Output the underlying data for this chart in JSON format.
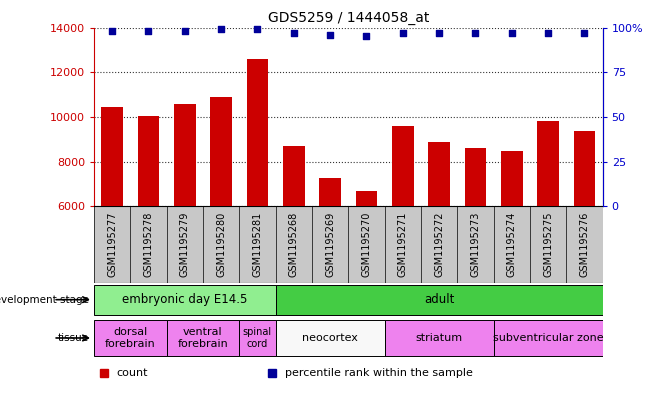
{
  "title": "GDS5259 / 1444058_at",
  "samples": [
    "GSM1195277",
    "GSM1195278",
    "GSM1195279",
    "GSM1195280",
    "GSM1195281",
    "GSM1195268",
    "GSM1195269",
    "GSM1195270",
    "GSM1195271",
    "GSM1195272",
    "GSM1195273",
    "GSM1195274",
    "GSM1195275",
    "GSM1195276"
  ],
  "counts": [
    10450,
    10020,
    10600,
    10900,
    12600,
    8700,
    7250,
    6680,
    9600,
    8900,
    8600,
    8480,
    9800,
    9380
  ],
  "percentiles": [
    98,
    98,
    98,
    99,
    99,
    97,
    96,
    95,
    97,
    97,
    97,
    97,
    97,
    97
  ],
  "ylim_left": [
    6000,
    14000
  ],
  "ylim_right": [
    0,
    100
  ],
  "yticks_left": [
    6000,
    8000,
    10000,
    12000,
    14000
  ],
  "yticks_right": [
    0,
    25,
    50,
    75,
    100
  ],
  "ytick_labels_right": [
    "0",
    "25",
    "50",
    "75",
    "100%"
  ],
  "bar_color": "#cc0000",
  "dot_color": "#000099",
  "background_color": "#ffffff",
  "tick_bg_color": "#c8c8c8",
  "dev_stage_row": {
    "label": "development stage",
    "groups": [
      {
        "name": "embryonic day E14.5",
        "start": 0,
        "end": 5,
        "color": "#90ee90"
      },
      {
        "name": "adult",
        "start": 5,
        "end": 14,
        "color": "#44cc44"
      }
    ]
  },
  "tissue_row": {
    "label": "tissue",
    "groups": [
      {
        "name": "dorsal\nforebrain",
        "start": 0,
        "end": 2,
        "color": "#ee82ee"
      },
      {
        "name": "ventral\nforebrain",
        "start": 2,
        "end": 4,
        "color": "#ee82ee"
      },
      {
        "name": "spinal\ncord",
        "start": 4,
        "end": 5,
        "color": "#ee82ee"
      },
      {
        "name": "neocortex",
        "start": 5,
        "end": 8,
        "color": "#f8f8f8"
      },
      {
        "name": "striatum",
        "start": 8,
        "end": 11,
        "color": "#ee82ee"
      },
      {
        "name": "subventricular zone",
        "start": 11,
        "end": 14,
        "color": "#ee82ee"
      }
    ]
  },
  "legend": [
    {
      "label": "count",
      "color": "#cc0000"
    },
    {
      "label": "percentile rank within the sample",
      "color": "#000099"
    }
  ]
}
